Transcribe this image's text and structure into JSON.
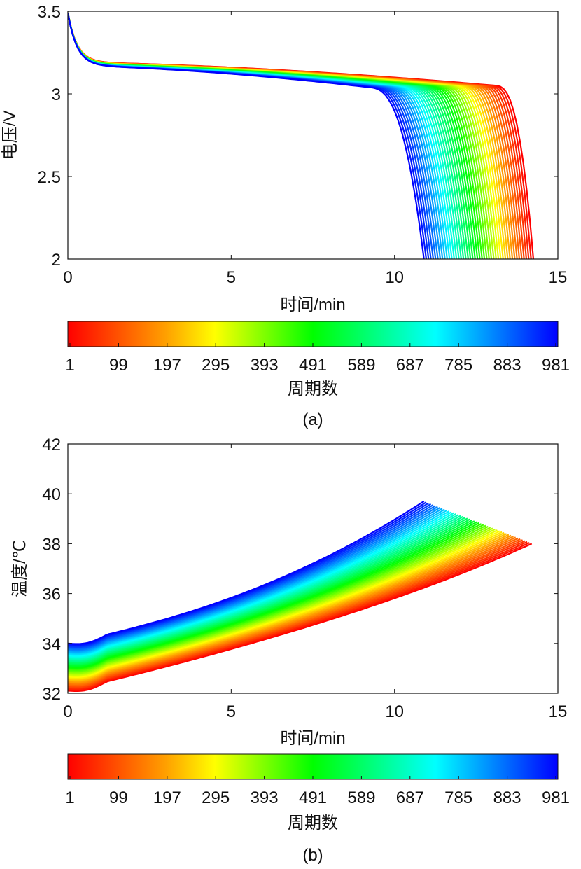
{
  "chart_data": [
    {
      "panel": "(a)",
      "type": "line",
      "xlabel": "时间/min",
      "ylabel": "电压/V",
      "xlim": [
        0,
        15
      ],
      "ylim": [
        2,
        3.5
      ],
      "xticks": [
        "0",
        "5",
        "10",
        "15"
      ],
      "yticks": [
        "2",
        "2.5",
        "3",
        "3.5"
      ],
      "xtick_values": [
        0,
        5,
        10,
        15
      ],
      "ytick_values": [
        2,
        2.5,
        3,
        3.5
      ],
      "series_description": "One discharge voltage curve per cycle, colored by cycle number",
      "cycle_range": [
        1,
        981
      ],
      "series": [
        {
          "name": "cycle 1",
          "end_time_min": 14.25,
          "start_v": 3.49,
          "plateau_v": [
            3.19,
            3.03
          ],
          "end_v": 2.0
        },
        {
          "name": "cycle 981",
          "end_time_min": 10.9,
          "start_v": 3.49,
          "plateau_v": [
            3.17,
            3.0
          ],
          "end_v": 2.0
        }
      ],
      "colorbar": {
        "label": "周期数",
        "ticks": [
          "1",
          "99",
          "197",
          "295",
          "393",
          "491",
          "589",
          "687",
          "785",
          "883",
          "981"
        ],
        "colors": [
          "#ff0000",
          "#ffa000",
          "#ffff00",
          "#00ff00",
          "#00ffff",
          "#0000ff"
        ]
      }
    },
    {
      "panel": "(b)",
      "type": "line",
      "xlabel": "时间/min",
      "ylabel": "温度/℃",
      "xlim": [
        0,
        15
      ],
      "ylim": [
        32,
        42
      ],
      "xticks": [
        "0",
        "5",
        "10",
        "15"
      ],
      "yticks": [
        "32",
        "34",
        "36",
        "38",
        "40",
        "42"
      ],
      "xtick_values": [
        0,
        5,
        10,
        15
      ],
      "ytick_values": [
        32,
        34,
        36,
        38,
        40,
        42
      ],
      "series_description": "One temperature curve per cycle, colored by cycle number",
      "cycle_range": [
        1,
        981
      ],
      "series": [
        {
          "name": "cycle 1",
          "end_time_min": 14.2,
          "start_temp": 32.1,
          "end_temp": 38.0
        },
        {
          "name": "cycle 981",
          "end_time_min": 10.9,
          "start_temp": 34.0,
          "end_temp": 39.7
        }
      ],
      "colorbar": {
        "label": "周期数",
        "ticks": [
          "1",
          "99",
          "197",
          "295",
          "393",
          "491",
          "589",
          "687",
          "785",
          "883",
          "981"
        ],
        "colors": [
          "#ff0000",
          "#ffa000",
          "#ffff00",
          "#00ff00",
          "#00ffff",
          "#0000ff"
        ]
      }
    }
  ]
}
